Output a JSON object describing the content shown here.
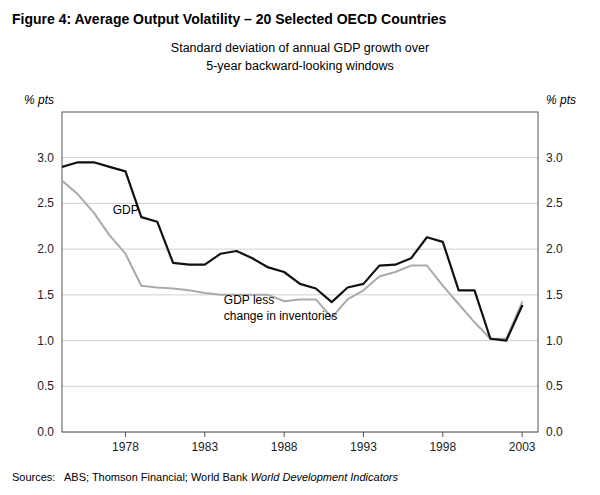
{
  "chart_data": {
    "type": "line",
    "title": "Figure 4: Average Output Volatility – 20 Selected OECD Countries",
    "subtitle": "Standard deviation of annual GDP growth over\n5-year backward-looking windows",
    "ylabel": "% pts",
    "y2label": "% pts",
    "sources": [
      "Sources:   ABS; Thomson Financial; World Bank ",
      "World Development Indicators"
    ],
    "x": [
      1974,
      1975,
      1976,
      1977,
      1978,
      1979,
      1980,
      1981,
      1982,
      1983,
      1984,
      1985,
      1986,
      1987,
      1988,
      1989,
      1990,
      1991,
      1992,
      1993,
      1994,
      1995,
      1996,
      1997,
      1998,
      1999,
      2000,
      2001,
      2002,
      2003
    ],
    "series": [
      {
        "color": "#111111",
        "values": [
          2.9,
          2.95,
          2.95,
          2.9,
          2.85,
          2.35,
          2.3,
          1.85,
          1.83,
          1.83,
          1.95,
          1.98,
          1.9,
          1.8,
          1.75,
          1.62,
          1.57,
          1.42,
          1.58,
          1.62,
          1.82,
          1.83,
          1.9,
          2.13,
          2.08,
          1.55,
          1.55,
          1.02,
          1.0,
          1.38
        ]
      },
      {
        "color": "#aaaaaa",
        "values": [
          2.75,
          2.6,
          2.4,
          2.15,
          1.95,
          1.6,
          1.58,
          1.57,
          1.55,
          1.52,
          1.5,
          1.5,
          1.5,
          1.5,
          1.43,
          1.45,
          1.45,
          1.25,
          1.45,
          1.55,
          1.7,
          1.75,
          1.82,
          1.82,
          1.6,
          1.4,
          1.2,
          1.02,
          1.02,
          1.42
        ]
      }
    ],
    "annotations": [
      {
        "text": "GDP",
        "x": 1977.2,
        "y": 2.38
      },
      {
        "text": "GDP less\nchange in inventories",
        "x": 1984.2,
        "y": 1.22
      }
    ],
    "xlim": [
      1974,
      2004
    ],
    "xticks": [
      1978,
      1983,
      1988,
      1993,
      1998,
      2003
    ],
    "ylim": [
      0.0,
      3.5
    ],
    "yticks": [
      {
        "value": 0.0,
        "label": "0.0"
      },
      {
        "value": 0.5,
        "label": "0.5"
      },
      {
        "value": 1.0,
        "label": "1.0"
      },
      {
        "value": 1.5,
        "label": "1.5"
      },
      {
        "value": 2.0,
        "label": "2.0"
      },
      {
        "value": 2.5,
        "label": "2.5"
      },
      {
        "value": 3.0,
        "label": "3.0"
      }
    ],
    "y2lim": [
      0.0,
      3.5
    ],
    "y2ticks": [
      {
        "value": 0.0,
        "label": "0.0"
      },
      {
        "value": 0.5,
        "label": "0.5"
      },
      {
        "value": 1.0,
        "label": "1.0"
      },
      {
        "value": 1.5,
        "label": "1.5"
      },
      {
        "value": 2.0,
        "label": "2.0"
      },
      {
        "value": 2.5,
        "label": "2.5"
      },
      {
        "value": 3.0,
        "label": "3.0"
      }
    ],
    "grid": true
  }
}
